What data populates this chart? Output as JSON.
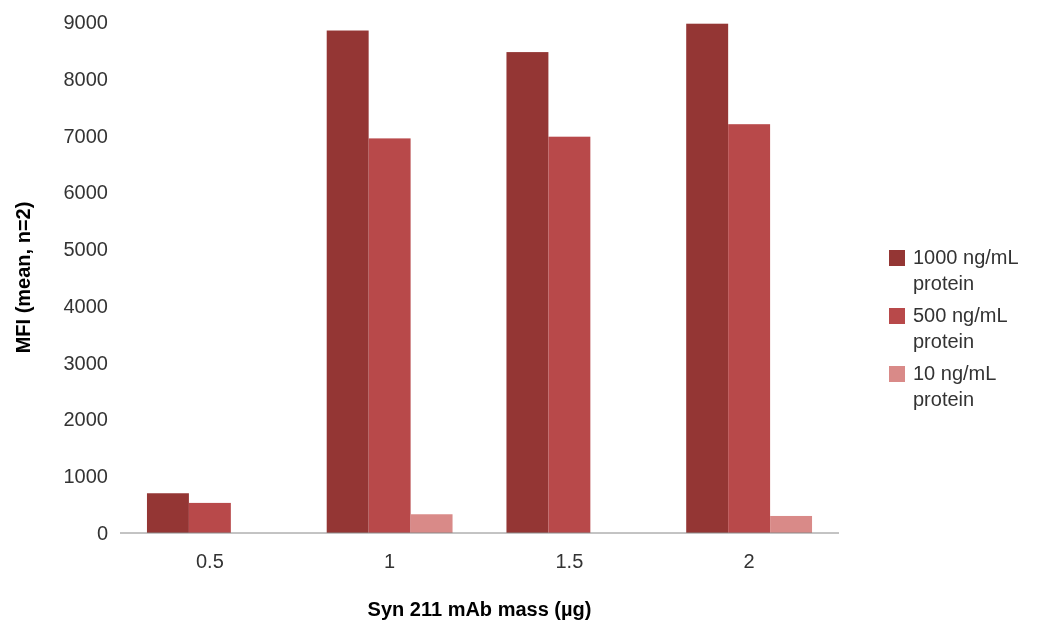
{
  "chart_data": {
    "type": "bar",
    "xlabel": "Syn 211 mAb mass (µg)",
    "ylabel": "MFI (mean, n=2)",
    "categories": [
      "0.5",
      "1",
      "1.5",
      "2"
    ],
    "series": [
      {
        "name": "1000 ng/mL protein",
        "color": "#943634",
        "values": [
          700,
          8850,
          8470,
          8970
        ]
      },
      {
        "name": "500 ng/mL protein",
        "color": "#b8494a",
        "values": [
          530,
          6950,
          6980,
          7200
        ]
      },
      {
        "name": "10 ng/mL protein",
        "color": "#d98a88",
        "values": [
          null,
          330,
          null,
          300
        ]
      }
    ],
    "ylim": [
      0,
      9000
    ],
    "yticks": [
      0,
      1000,
      2000,
      3000,
      4000,
      5000,
      6000,
      7000,
      8000,
      9000
    ],
    "grid": false,
    "legend": "right"
  }
}
